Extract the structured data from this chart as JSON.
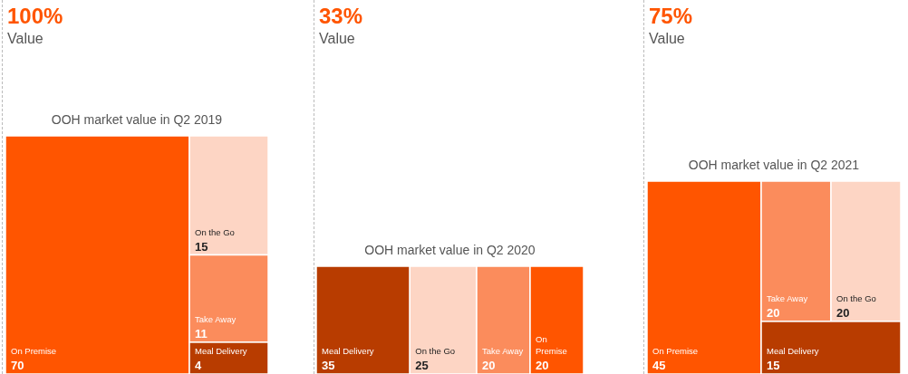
{
  "chart_data": [
    {
      "type": "other",
      "title": "OOH market value in Q2 2019",
      "annotations": [
        "100%",
        "Value"
      ],
      "categories": [
        "On Premise",
        "On the Go",
        "Take Away",
        "Meal Delivery"
      ],
      "values": [
        70,
        15,
        11,
        4
      ],
      "colors": [
        "#ff5500",
        "#fdd5c4",
        "#fb8c5c",
        "#b83c00"
      ],
      "data_labels": true
    },
    {
      "type": "other",
      "title": "OOH market value in Q2 2020",
      "annotations": [
        "33%",
        "Value"
      ],
      "categories": [
        "Meal Delivery",
        "On the Go",
        "Take Away",
        "On Premise"
      ],
      "values": [
        35,
        25,
        20,
        20
      ],
      "colors": [
        "#b83c00",
        "#fdd5c4",
        "#fb8c5c",
        "#ff5500"
      ],
      "data_labels": true
    },
    {
      "type": "other",
      "title": "OOH market value in Q2 2021",
      "annotations": [
        "75%",
        "Value"
      ],
      "categories": [
        "On Premise",
        "Take Away",
        "On the Go",
        "Meal Delivery"
      ],
      "values": [
        45,
        20,
        20,
        15
      ],
      "colors": [
        "#ff5500",
        "#fb8c5c",
        "#fdd5c4",
        "#b83c00"
      ],
      "data_labels": true
    }
  ]
}
